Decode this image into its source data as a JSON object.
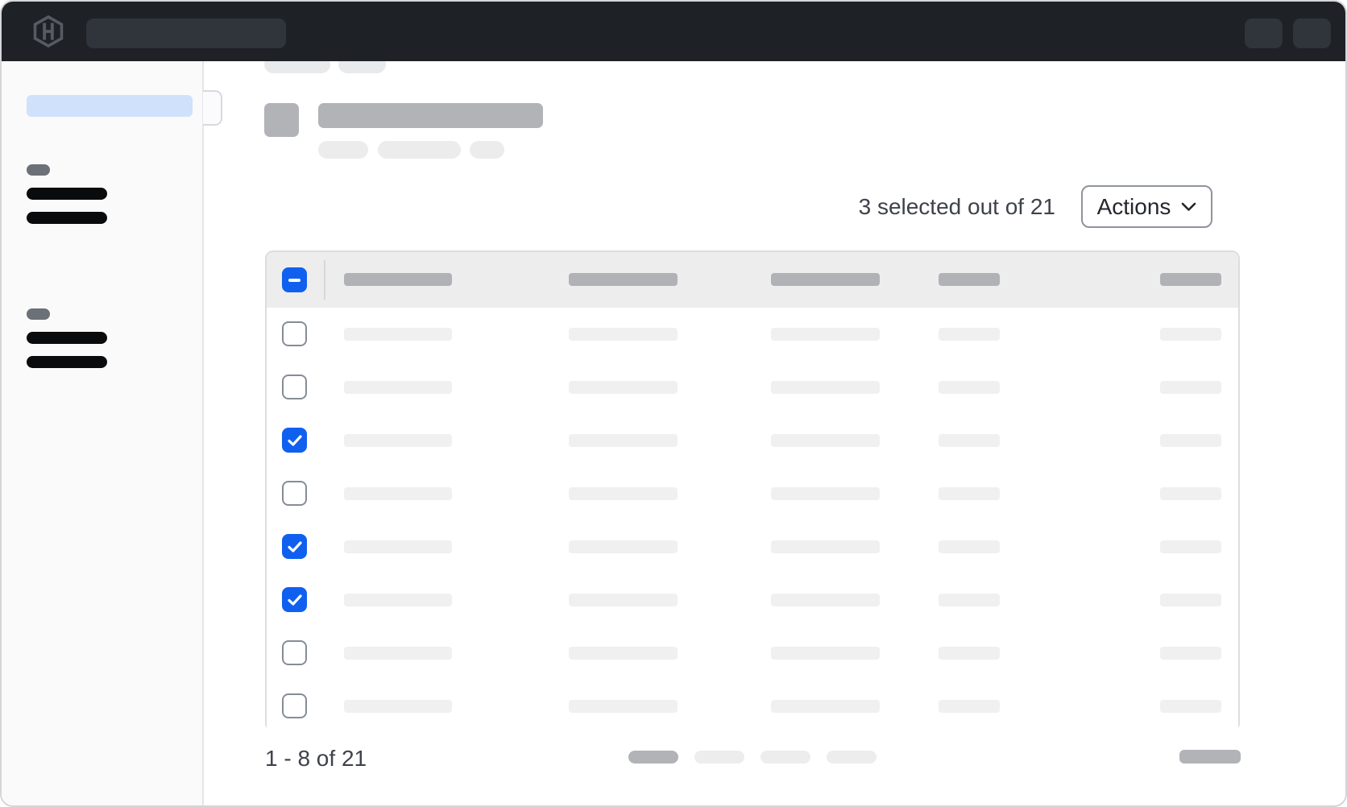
{
  "topnav": {
    "logo_icon": "hashicorp-hexagon-h-logo",
    "search_skeleton": "empty-search-placeholder",
    "right_buttons": [
      "nav-action-skeleton-1",
      "nav-action-skeleton-2"
    ]
  },
  "sidebar": {
    "active_item": "selected-nav-item-skeleton",
    "sections": [
      {
        "label": "section-label-skeleton",
        "links": [
          "nav-link-skeleton",
          "nav-link-skeleton"
        ]
      },
      {
        "label": "section-label-skeleton",
        "links": [
          "nav-link-skeleton",
          "nav-link-skeleton"
        ]
      }
    ]
  },
  "page_header": {
    "breadcrumb_skeletons": 2,
    "icon_skeleton": true,
    "title_skeleton": true,
    "badge_skeletons": 3
  },
  "toolbar": {
    "selection_summary": "3 selected out of 21",
    "actions_label": "Actions",
    "actions_chevron_icon": "chevron-down"
  },
  "table": {
    "header_checkbox_state": "indeterminate",
    "header_checkbox_icon": "minus",
    "row_checked_icon": "checkmark",
    "columns": 5,
    "rows": [
      {
        "checked": false
      },
      {
        "checked": false
      },
      {
        "checked": true
      },
      {
        "checked": false
      },
      {
        "checked": true
      },
      {
        "checked": true
      },
      {
        "checked": false
      },
      {
        "checked": false
      }
    ],
    "selected_count": 3,
    "total_count": 21
  },
  "pagination": {
    "range_label": "1 - 8 of 21",
    "page_pills": 4,
    "current_page_index": 0
  },
  "colors": {
    "accent_blue": "#1060f0",
    "selected_item_blue": "#cfe1fb",
    "navbar_bg": "#1e2126",
    "skeleton_dark": "#b1b3b7",
    "skeleton_light": "#f0f0f1",
    "table_header_bg": "#ededee"
  }
}
